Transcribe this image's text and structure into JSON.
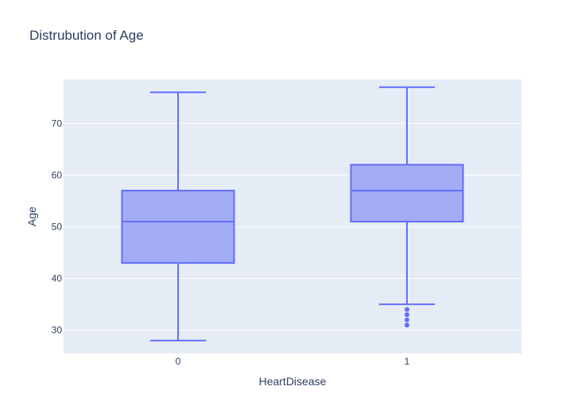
{
  "chart_data": {
    "type": "box",
    "title": "Distrubution of Age",
    "xlabel": "HeartDisease",
    "ylabel": "Age",
    "categories": [
      "0",
      "1"
    ],
    "ylim": [
      25.5,
      78.5
    ],
    "yticks": [
      30,
      40,
      50,
      60,
      70
    ],
    "grid": true,
    "boxes": [
      {
        "category": "0",
        "min": 28,
        "q1": 43,
        "median": 51,
        "q3": 57,
        "max": 76,
        "outliers": []
      },
      {
        "category": "1",
        "min": 35,
        "q1": 51,
        "median": 57,
        "q3": 62,
        "max": 77,
        "outliers": [
          34,
          33,
          32,
          31
        ]
      }
    ],
    "colors": {
      "box_fill": "#a4acf6",
      "box_line": "#636efa",
      "plot_bg": "#e5ecf6",
      "grid": "#ffffff",
      "text": "#2a3f5f"
    }
  }
}
